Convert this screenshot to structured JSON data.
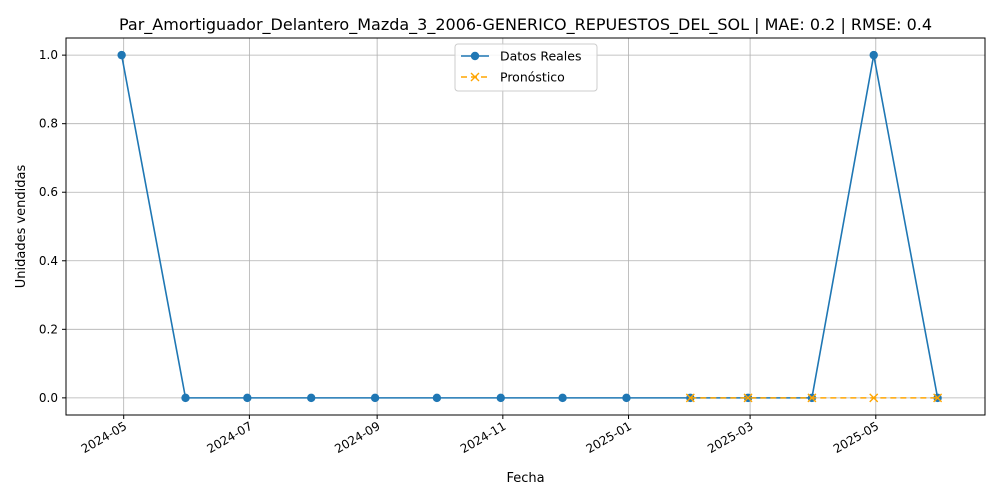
{
  "chart_data": {
    "type": "line",
    "title": "Par_Amortiguador_Delantero_Mazda_3_2006-GENERICO_REPUESTOS_DEL_SOL | MAE: 0.2 | RMSE: 0.4",
    "xlabel": "Fecha",
    "ylabel": "Unidades vendidas",
    "xlim": [
      "2024-04-03",
      "2025-06-23"
    ],
    "ylim": [
      -0.05,
      1.05
    ],
    "x_ticks": [
      "2024-05",
      "2024-07",
      "2024-09",
      "2024-11",
      "2025-01",
      "2025-03",
      "2025-05"
    ],
    "x_tick_dates": [
      "2024-05-01",
      "2024-07-01",
      "2024-09-01",
      "2024-11-01",
      "2025-01-01",
      "2025-03-01",
      "2025-05-01"
    ],
    "y_ticks": [
      "0.0",
      "0.2",
      "0.4",
      "0.6",
      "0.8",
      "1.0"
    ],
    "grid": true,
    "legend_position": "top-center",
    "series": [
      {
        "name": "Datos Reales",
        "color": "#1f77b4",
        "style": "solid",
        "marker": "circle",
        "x": [
          "2024-04-30",
          "2024-05-31",
          "2024-06-30",
          "2024-07-31",
          "2024-08-31",
          "2024-09-30",
          "2024-10-31",
          "2024-11-30",
          "2024-12-31",
          "2025-01-31",
          "2025-02-28",
          "2025-03-31",
          "2025-04-30",
          "2025-05-31"
        ],
        "values": [
          1,
          0,
          0,
          0,
          0,
          0,
          0,
          0,
          0,
          0,
          0,
          0,
          1,
          0
        ]
      },
      {
        "name": "Pronóstico",
        "color": "#ffa500",
        "style": "dashed",
        "marker": "x",
        "x": [
          "2025-01-31",
          "2025-02-28",
          "2025-03-31",
          "2025-04-30",
          "2025-05-31"
        ],
        "values": [
          0,
          0,
          0,
          0,
          0
        ]
      }
    ]
  }
}
